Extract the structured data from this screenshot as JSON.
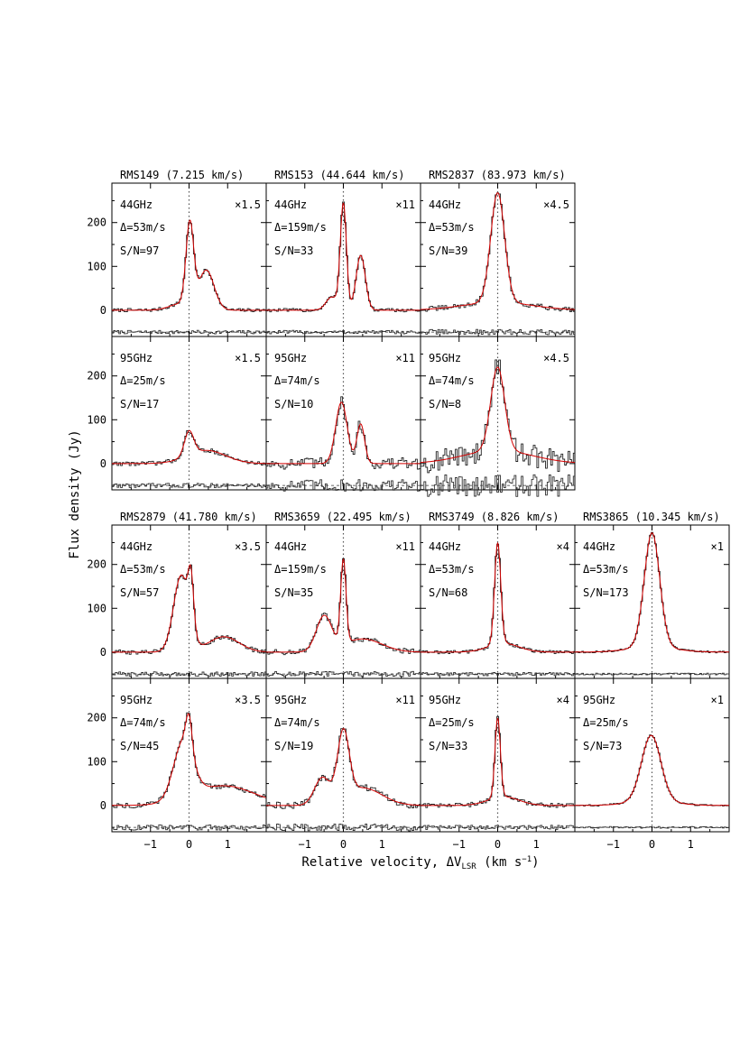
{
  "figure": {
    "xlabel": "Relative velocity, ΔV",
    "xlabel_sub": "LSR",
    "xlabel_unit_pre": " (km s",
    "xlabel_unit_sup": "−1",
    "xlabel_unit_post": ")",
    "ylabel": "Flux density (Jy)"
  },
  "chart_data": {
    "type": "line",
    "xlim": [
      -2,
      2
    ],
    "x_ticks": [
      -1,
      0,
      1
    ],
    "y_ticks": [
      0,
      100,
      200
    ],
    "ylim": [
      -60,
      290
    ],
    "residual_baseline": -50,
    "sources": [
      {
        "name": "RMS149 (7.215 km/s)",
        "scale": "×1.5",
        "panels": [
          {
            "band": "44GHz",
            "res": "Δ=53m/s",
            "snr": "S/N=97",
            "noise": 4,
            "components": [
              {
                "amp": 185,
                "center": 0.02,
                "sigma": 0.1
              },
              {
                "amp": 90,
                "center": 0.45,
                "sigma": 0.2
              },
              {
                "amp": 15,
                "center": -0.2,
                "sigma": 0.3
              }
            ]
          },
          {
            "band": "95GHz",
            "res": "Δ=25m/s",
            "snr": "S/N=17",
            "noise": 5,
            "components": [
              {
                "amp": 55,
                "center": 0.0,
                "sigma": 0.12
              },
              {
                "amp": 30,
                "center": 0.45,
                "sigma": 0.5
              }
            ]
          }
        ]
      },
      {
        "name": "RMS153 (44.644 km/s)",
        "scale": "×11",
        "panels": [
          {
            "band": "44GHz",
            "res": "Δ=159m/s",
            "snr": "S/N=33",
            "noise": 4,
            "components": [
              {
                "amp": 240,
                "center": 0.0,
                "sigma": 0.08
              },
              {
                "amp": 125,
                "center": 0.45,
                "sigma": 0.12
              },
              {
                "amp": 30,
                "center": -0.3,
                "sigma": 0.15
              }
            ]
          },
          {
            "band": "95GHz",
            "res": "Δ=74m/s",
            "snr": "S/N=10",
            "noise": 14,
            "components": [
              {
                "amp": 140,
                "center": -0.05,
                "sigma": 0.15
              },
              {
                "amp": 90,
                "center": 0.45,
                "sigma": 0.1
              }
            ]
          }
        ]
      },
      {
        "name": "RMS2837 (83.973 km/s)",
        "scale": "×4.5",
        "panels": [
          {
            "band": "44GHz",
            "res": "Δ=53m/s",
            "snr": "S/N=39",
            "noise": 6,
            "components": [
              {
                "amp": 250,
                "center": 0.0,
                "sigma": 0.18
              },
              {
                "amp": 18,
                "center": 0.0,
                "sigma": 0.9
              }
            ]
          },
          {
            "band": "95GHz",
            "res": "Δ=74m/s",
            "snr": "S/N=8",
            "noise": 25,
            "components": [
              {
                "amp": 190,
                "center": 0.0,
                "sigma": 0.18
              },
              {
                "amp": 30,
                "center": 0.0,
                "sigma": 0.9
              }
            ]
          }
        ]
      },
      {
        "name": "RMS2879 (41.780 km/s)",
        "scale": "×3.5",
        "panels": [
          {
            "band": "44GHz",
            "res": "Δ=53m/s",
            "snr": "S/N=57",
            "noise": 5,
            "components": [
              {
                "amp": 110,
                "center": 0.05,
                "sigma": 0.07
              },
              {
                "amp": 175,
                "center": -0.2,
                "sigma": 0.2
              },
              {
                "amp": 35,
                "center": 0.9,
                "sigma": 0.4
              }
            ]
          },
          {
            "band": "95GHz",
            "res": "Δ=74m/s",
            "snr": "S/N=45",
            "noise": 6,
            "components": [
              {
                "amp": 75,
                "center": 0.0,
                "sigma": 0.08
              },
              {
                "amp": 130,
                "center": -0.15,
                "sigma": 0.25
              },
              {
                "amp": 45,
                "center": 0.9,
                "sigma": 0.8
              }
            ]
          }
        ]
      },
      {
        "name": "RMS3659 (22.495 km/s)",
        "scale": "×11",
        "panels": [
          {
            "band": "44GHz",
            "res": "Δ=159m/s",
            "snr": "S/N=35",
            "noise": 6,
            "components": [
              {
                "amp": 190,
                "center": 0.0,
                "sigma": 0.07
              },
              {
                "amp": 80,
                "center": -0.5,
                "sigma": 0.2
              },
              {
                "amp": 30,
                "center": 0.5,
                "sigma": 0.5
              }
            ]
          },
          {
            "band": "95GHz",
            "res": "Δ=74m/s",
            "snr": "S/N=19",
            "noise": 8,
            "components": [
              {
                "amp": 150,
                "center": 0.0,
                "sigma": 0.15
              },
              {
                "amp": 60,
                "center": -0.55,
                "sigma": 0.2
              },
              {
                "amp": 40,
                "center": 0.5,
                "sigma": 0.5
              }
            ]
          }
        ]
      },
      {
        "name": "RMS3749 (8.826 km/s)",
        "scale": "×4",
        "panels": [
          {
            "band": "44GHz",
            "res": "Δ=53m/s",
            "snr": "S/N=68",
            "noise": 4,
            "components": [
              {
                "amp": 230,
                "center": 0.0,
                "sigma": 0.08
              },
              {
                "amp": 20,
                "center": 0.15,
                "sigma": 0.4
              }
            ]
          },
          {
            "band": "95GHz",
            "res": "Δ=25m/s",
            "snr": "S/N=33",
            "noise": 5,
            "components": [
              {
                "amp": 180,
                "center": 0.0,
                "sigma": 0.07
              },
              {
                "amp": 20,
                "center": 0.15,
                "sigma": 0.4
              }
            ]
          }
        ]
      },
      {
        "name": "RMS3865 (10.345 km/s)",
        "scale": "×1",
        "panels": [
          {
            "band": "44GHz",
            "res": "Δ=53m/s",
            "snr": "S/N=173",
            "noise": 2,
            "components": [
              {
                "amp": 260,
                "center": 0.0,
                "sigma": 0.2
              },
              {
                "amp": 12,
                "center": 0.0,
                "sigma": 0.6
              }
            ]
          },
          {
            "band": "95GHz",
            "res": "Δ=25m/s",
            "snr": "S/N=73",
            "noise": 2,
            "components": [
              {
                "amp": 150,
                "center": -0.02,
                "sigma": 0.25
              },
              {
                "amp": 10,
                "center": 0.0,
                "sigma": 0.6
              }
            ]
          }
        ]
      }
    ]
  }
}
